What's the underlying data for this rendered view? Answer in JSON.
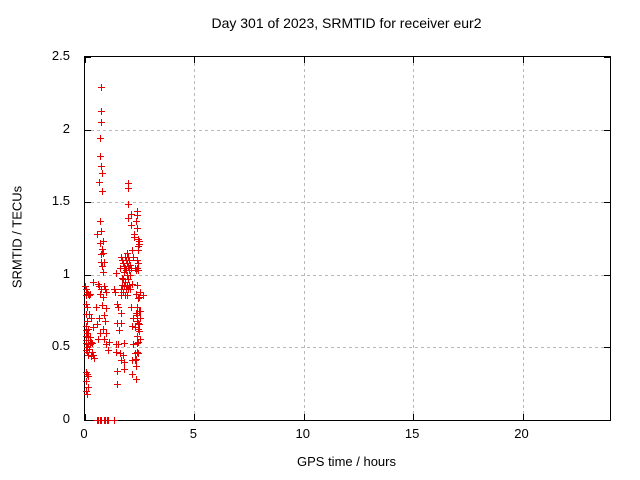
{
  "chart_data": {
    "type": "scatter",
    "title": "Day 301 of 2023, SRMTID for receiver eur2",
    "xlabel": "GPS time / hours",
    "ylabel": "SRMTID / TECUs",
    "xlim": [
      0,
      24
    ],
    "ylim": [
      0,
      2.5
    ],
    "x_ticks": [
      0,
      5,
      10,
      15,
      20
    ],
    "x_tick_labels": [
      "0",
      "5",
      "10",
      "15",
      "20"
    ],
    "y_ticks": [
      0,
      0.5,
      1,
      1.5,
      2,
      2.5
    ],
    "y_tick_labels": [
      "0",
      "0.5",
      "1",
      "1.5",
      "2",
      "2.5"
    ],
    "grid": true,
    "legend_position": "none",
    "marker": "plus",
    "marker_color": "#e60000",
    "series_name": "SRMTID",
    "points": [
      [
        0.02,
        0.92
      ],
      [
        0.05,
        0.9
      ],
      [
        0.09,
        0.88
      ],
      [
        0.05,
        0.86
      ],
      [
        0.14,
        0.87
      ],
      [
        0.18,
        0.86
      ],
      [
        0.23,
        0.87
      ],
      [
        0.37,
        0.95
      ],
      [
        0.05,
        0.8
      ],
      [
        0.09,
        0.78
      ],
      [
        0.05,
        0.73
      ],
      [
        0.18,
        0.73
      ],
      [
        0.27,
        0.7
      ],
      [
        0.09,
        0.68
      ],
      [
        0.05,
        0.65
      ],
      [
        0.14,
        0.63
      ],
      [
        0.37,
        0.64
      ],
      [
        0.05,
        0.62
      ],
      [
        0.09,
        0.6
      ],
      [
        0.05,
        0.58
      ],
      [
        0.14,
        0.57
      ],
      [
        0.23,
        0.57
      ],
      [
        0.05,
        0.55
      ],
      [
        0.27,
        0.54
      ],
      [
        0.05,
        0.53
      ],
      [
        0.14,
        0.52
      ],
      [
        0.23,
        0.52
      ],
      [
        0.32,
        0.53
      ],
      [
        0.09,
        0.5
      ],
      [
        0.18,
        0.49
      ],
      [
        0.05,
        0.48
      ],
      [
        0.09,
        0.47
      ],
      [
        0.32,
        0.47
      ],
      [
        0.14,
        0.45
      ],
      [
        0.27,
        0.44
      ],
      [
        0.37,
        0.45
      ],
      [
        0.41,
        0.43
      ],
      [
        0.05,
        0.33
      ],
      [
        0.09,
        0.32
      ],
      [
        0.14,
        0.3
      ],
      [
        0.05,
        0.27
      ],
      [
        0.14,
        0.23
      ],
      [
        0.05,
        0.2
      ],
      [
        0.09,
        0.18
      ],
      [
        0.73,
        2.29
      ],
      [
        0.73,
        2.13
      ],
      [
        0.73,
        2.05
      ],
      [
        0.69,
        1.94
      ],
      [
        0.69,
        1.82
      ],
      [
        0.73,
        1.75
      ],
      [
        0.78,
        1.7
      ],
      [
        0.64,
        1.64
      ],
      [
        0.78,
        1.58
      ],
      [
        0.69,
        1.37
      ],
      [
        0.73,
        1.3
      ],
      [
        0.55,
        1.28
      ],
      [
        0.82,
        1.23
      ],
      [
        0.69,
        1.22
      ],
      [
        0.78,
        1.18
      ],
      [
        0.82,
        1.15
      ],
      [
        0.73,
        1.14
      ],
      [
        0.73,
        1.09
      ],
      [
        0.87,
        1.09
      ],
      [
        0.78,
        1.06
      ],
      [
        0.82,
        1.02
      ],
      [
        0.59,
        0.94
      ],
      [
        0.64,
        0.92
      ],
      [
        0.73,
        0.9
      ],
      [
        0.87,
        0.92
      ],
      [
        0.91,
        0.9
      ],
      [
        0.96,
        0.88
      ],
      [
        0.69,
        0.87
      ],
      [
        0.82,
        0.85
      ],
      [
        0.5,
        0.78
      ],
      [
        0.78,
        0.79
      ],
      [
        0.96,
        0.77
      ],
      [
        0.87,
        0.72
      ],
      [
        0.64,
        0.7
      ],
      [
        0.91,
        0.68
      ],
      [
        0.55,
        0.66
      ],
      [
        0.82,
        0.63
      ],
      [
        0.69,
        0.6
      ],
      [
        0.96,
        0.6
      ],
      [
        0.59,
        0.56
      ],
      [
        0.87,
        0.56
      ],
      [
        0.96,
        0.52
      ],
      [
        1.1,
        0.54
      ],
      [
        1.05,
        0.48
      ],
      [
        0.55,
        0
      ],
      [
        0.58,
        0
      ],
      [
        0.69,
        0
      ],
      [
        0.72,
        0
      ],
      [
        0.87,
        0
      ],
      [
        0.9,
        0
      ],
      [
        1.0,
        0
      ],
      [
        1.03,
        0
      ],
      [
        1.31,
        0
      ],
      [
        1.34,
        0
      ],
      [
        1.42,
        1.01
      ],
      [
        1.78,
        1.02
      ],
      [
        1.33,
        0.9
      ],
      [
        1.37,
        0.88
      ],
      [
        1.46,
        0.8
      ],
      [
        1.51,
        0.78
      ],
      [
        1.65,
        0.86
      ],
      [
        1.65,
        0.74
      ],
      [
        1.46,
        0.67
      ],
      [
        1.65,
        0.67
      ],
      [
        1.56,
        0.62
      ],
      [
        1.42,
        0.52
      ],
      [
        1.51,
        0.52
      ],
      [
        1.42,
        0.47
      ],
      [
        1.6,
        0.46
      ],
      [
        1.74,
        0.45
      ],
      [
        1.78,
        0.53
      ],
      [
        1.65,
        0.41
      ],
      [
        1.78,
        0.4
      ],
      [
        1.46,
        0.34
      ],
      [
        1.78,
        0.35
      ],
      [
        1.46,
        0.25
      ],
      [
        1.6,
        1.05
      ],
      [
        1.65,
        1.12
      ],
      [
        1.69,
        1.1
      ],
      [
        1.74,
        1.08
      ],
      [
        1.78,
        1.06
      ],
      [
        1.83,
        1.12
      ],
      [
        1.83,
        1.05
      ],
      [
        1.87,
        1.1
      ],
      [
        1.87,
        1.03
      ],
      [
        1.92,
        1.15
      ],
      [
        1.92,
        1.08
      ],
      [
        1.92,
        1.0
      ],
      [
        1.97,
        1.12
      ],
      [
        1.97,
        1.06
      ],
      [
        1.97,
        0.97
      ],
      [
        2.01,
        1.1
      ],
      [
        2.01,
        1.03
      ],
      [
        2.06,
        1.07
      ],
      [
        2.06,
        1.0
      ],
      [
        2.1,
        1.05
      ],
      [
        1.69,
        0.98
      ],
      [
        1.74,
        0.97
      ],
      [
        1.69,
        0.93
      ],
      [
        1.78,
        0.92
      ],
      [
        1.83,
        0.95
      ],
      [
        1.87,
        0.9
      ],
      [
        1.92,
        0.93
      ],
      [
        1.97,
        0.9
      ],
      [
        1.74,
        0.88
      ],
      [
        1.83,
        0.86
      ],
      [
        1.92,
        0.86
      ],
      [
        2.01,
        0.93
      ],
      [
        2.06,
        0.9
      ],
      [
        1.65,
        0.9
      ],
      [
        1.97,
        1.63
      ],
      [
        1.97,
        1.6
      ],
      [
        1.97,
        1.49
      ],
      [
        2.1,
        1.42
      ],
      [
        2.38,
        1.44
      ],
      [
        2.38,
        1.41
      ],
      [
        1.97,
        1.39
      ],
      [
        2.33,
        1.37
      ],
      [
        2.1,
        1.34
      ],
      [
        2.38,
        1.32
      ],
      [
        2.24,
        1.28
      ],
      [
        2.42,
        1.25
      ],
      [
        2.24,
        1.26
      ],
      [
        2.47,
        1.23
      ],
      [
        2.42,
        1.2
      ],
      [
        2.47,
        1.21
      ],
      [
        2.15,
        1.17
      ],
      [
        2.42,
        1.17
      ],
      [
        2.19,
        1.12
      ],
      [
        2.38,
        1.1
      ],
      [
        2.42,
        1.08
      ],
      [
        2.38,
        1.05
      ],
      [
        2.29,
        1.05
      ],
      [
        2.33,
        1.03
      ],
      [
        2.42,
        1.03
      ],
      [
        2.38,
        0.93
      ],
      [
        2.51,
        0.88
      ],
      [
        2.65,
        0.86
      ],
      [
        2.42,
        0.84
      ],
      [
        2.15,
        0.94
      ],
      [
        2.33,
        0.87
      ],
      [
        2.47,
        0.85
      ],
      [
        2.1,
        0.78
      ],
      [
        2.38,
        0.78
      ],
      [
        2.51,
        0.75
      ],
      [
        2.33,
        0.74
      ],
      [
        2.47,
        0.75
      ],
      [
        2.38,
        0.72
      ],
      [
        2.51,
        0.7
      ],
      [
        2.19,
        0.7
      ],
      [
        2.38,
        0.68
      ],
      [
        2.42,
        0.67
      ],
      [
        2.47,
        0.66
      ],
      [
        2.15,
        0.65
      ],
      [
        2.29,
        0.64
      ],
      [
        2.42,
        0.63
      ],
      [
        2.47,
        0.61
      ],
      [
        2.38,
        0.58
      ],
      [
        2.51,
        0.56
      ],
      [
        2.42,
        0.54
      ],
      [
        2.19,
        0.52
      ],
      [
        2.38,
        0.53
      ],
      [
        2.29,
        0.46
      ],
      [
        2.42,
        0.46
      ],
      [
        2.38,
        0.47
      ],
      [
        2.15,
        0.41
      ],
      [
        2.29,
        0.41
      ],
      [
        2.33,
        0.42
      ],
      [
        2.33,
        0.37
      ],
      [
        2.15,
        0.32
      ],
      [
        2.33,
        0.28
      ]
    ]
  }
}
